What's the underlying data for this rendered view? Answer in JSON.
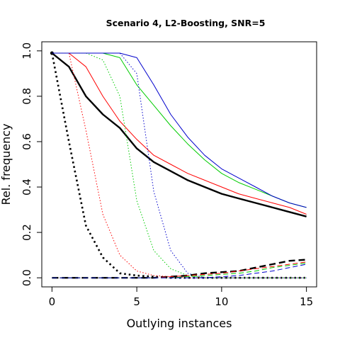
{
  "chart_data": {
    "type": "line",
    "title": "Scenario 4, L2-Boosting, SNR=5",
    "xlabel": "Outlying instances",
    "ylabel": "Rel. frequency",
    "xlim": [
      -0.6,
      15.6
    ],
    "ylim": [
      -0.04,
      1.04
    ],
    "xticks": [
      0,
      5,
      10,
      15
    ],
    "yticks": [
      0.0,
      0.2,
      0.4,
      0.6,
      0.8,
      1.0
    ],
    "xtick_labels": [
      "0",
      "5",
      "10",
      "15"
    ],
    "ytick_labels": [
      "0.0",
      "0.2",
      "0.4",
      "0.6",
      "0.8",
      "1.0"
    ],
    "grid": false,
    "legend": "none",
    "series": [
      {
        "color": "#000000",
        "style": "solid",
        "width": 2.4,
        "dot": true,
        "x": [
          0,
          1,
          2,
          3,
          4,
          5,
          6,
          7,
          8,
          9,
          10,
          11,
          12,
          13,
          14,
          15
        ],
        "y": [
          0.99,
          0.93,
          0.8,
          0.72,
          0.66,
          0.57,
          0.51,
          0.47,
          0.43,
          0.4,
          0.37,
          0.35,
          0.33,
          0.31,
          0.29,
          0.27
        ]
      },
      {
        "color": "#ff0000",
        "style": "solid",
        "width": 1,
        "x": [
          0,
          1,
          2,
          3,
          4,
          5,
          6,
          7,
          8,
          9,
          10,
          11,
          12,
          13,
          14,
          15
        ],
        "y": [
          0.99,
          0.99,
          0.93,
          0.8,
          0.69,
          0.61,
          0.54,
          0.5,
          0.46,
          0.43,
          0.4,
          0.37,
          0.35,
          0.33,
          0.31,
          0.28
        ]
      },
      {
        "color": "#00cc00",
        "style": "solid",
        "width": 1,
        "x": [
          0,
          1,
          2,
          3,
          4,
          5,
          6,
          7,
          8,
          9,
          10,
          11,
          12,
          13,
          14,
          15
        ],
        "y": [
          0.99,
          0.99,
          0.99,
          0.99,
          0.97,
          0.85,
          0.76,
          0.67,
          0.59,
          0.52,
          0.46,
          0.42,
          0.39,
          0.36,
          0.33,
          0.31
        ]
      },
      {
        "color": "#0000cc",
        "style": "solid",
        "width": 1,
        "x": [
          0,
          1,
          2,
          3,
          4,
          5,
          6,
          7,
          8,
          9,
          10,
          11,
          12,
          13,
          14,
          15
        ],
        "y": [
          0.99,
          0.99,
          0.99,
          0.99,
          0.99,
          0.97,
          0.85,
          0.72,
          0.62,
          0.54,
          0.48,
          0.44,
          0.4,
          0.36,
          0.33,
          0.31
        ]
      },
      {
        "color": "#000000",
        "style": "dotted",
        "width": 2.6,
        "x": [
          0,
          1,
          2,
          3,
          4,
          5,
          6,
          7,
          8,
          9,
          10,
          11,
          12,
          13,
          14,
          15
        ],
        "y": [
          0.99,
          0.6,
          0.23,
          0.09,
          0.02,
          0.01,
          0.005,
          0,
          0,
          0,
          0,
          0,
          0,
          0,
          0,
          0
        ]
      },
      {
        "color": "#ff0000",
        "style": "dotted",
        "width": 1,
        "x": [
          0,
          1,
          2,
          3,
          4,
          5,
          6,
          7,
          8,
          9,
          10,
          11,
          12,
          13,
          14,
          15
        ],
        "y": [
          0.99,
          0.99,
          0.65,
          0.28,
          0.1,
          0.03,
          0.01,
          0.005,
          0,
          0,
          0,
          0,
          0,
          0,
          0,
          0
        ]
      },
      {
        "color": "#00cc00",
        "style": "dotted",
        "width": 1,
        "x": [
          0,
          1,
          2,
          3,
          4,
          5,
          6,
          7,
          8,
          9,
          10,
          11,
          12,
          13,
          14,
          15
        ],
        "y": [
          0.99,
          0.99,
          0.99,
          0.96,
          0.8,
          0.34,
          0.12,
          0.04,
          0.01,
          0,
          0,
          0,
          0,
          0,
          0,
          0
        ]
      },
      {
        "color": "#0000cc",
        "style": "dotted",
        "width": 1,
        "x": [
          0,
          1,
          2,
          3,
          4,
          5,
          6,
          7,
          8,
          9,
          10,
          11,
          12,
          13,
          14,
          15
        ],
        "y": [
          0.99,
          0.99,
          0.99,
          0.99,
          0.99,
          0.9,
          0.38,
          0.12,
          0.02,
          0,
          0,
          0,
          0,
          0,
          0,
          0
        ]
      },
      {
        "color": "#000000",
        "style": "dashed",
        "width": 2.4,
        "x": [
          0,
          1,
          2,
          3,
          4,
          5,
          6,
          7,
          8,
          9,
          10,
          11,
          12,
          13,
          14,
          15
        ],
        "y": [
          0,
          0,
          0,
          0,
          0,
          0,
          0,
          0.005,
          0.01,
          0.02,
          0.025,
          0.03,
          0.045,
          0.06,
          0.075,
          0.08
        ]
      },
      {
        "color": "#ff0000",
        "style": "dashed",
        "width": 1,
        "x": [
          0,
          1,
          2,
          3,
          4,
          5,
          6,
          7,
          8,
          9,
          10,
          11,
          12,
          13,
          14,
          15
        ],
        "y": [
          0,
          0,
          0,
          0,
          0,
          0,
          0,
          0.005,
          0.01,
          0.015,
          0.02,
          0.03,
          0.04,
          0.05,
          0.06,
          0.07
        ]
      },
      {
        "color": "#00cc00",
        "style": "dashed",
        "width": 1,
        "x": [
          0,
          1,
          2,
          3,
          4,
          5,
          6,
          7,
          8,
          9,
          10,
          11,
          12,
          13,
          14,
          15
        ],
        "y": [
          0,
          0,
          0,
          0,
          0,
          0,
          0,
          0,
          0.005,
          0.01,
          0.015,
          0.02,
          0.03,
          0.045,
          0.055,
          0.065
        ]
      },
      {
        "color": "#0000cc",
        "style": "dashed",
        "width": 1,
        "x": [
          0,
          1,
          2,
          3,
          4,
          5,
          6,
          7,
          8,
          9,
          10,
          11,
          12,
          13,
          14,
          15
        ],
        "y": [
          0,
          0,
          0,
          0,
          0,
          0,
          0,
          0,
          0,
          0,
          0.005,
          0.01,
          0.02,
          0.03,
          0.045,
          0.06
        ]
      }
    ]
  }
}
